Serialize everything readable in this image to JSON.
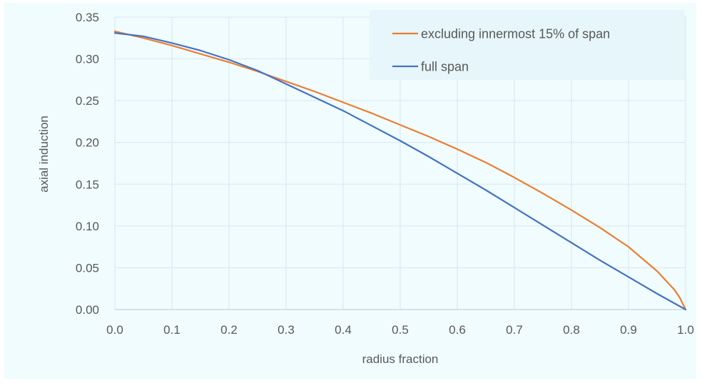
{
  "chart_data": {
    "type": "line",
    "title": "",
    "xlabel": "radius fraction",
    "ylabel": "axial induction",
    "xlim": [
      0,
      1
    ],
    "ylim": [
      0,
      0.35
    ],
    "x_ticks": [
      "0.0",
      "0.1",
      "0.2",
      "0.3",
      "0.4",
      "0.5",
      "0.6",
      "0.7",
      "0.8",
      "0.9",
      "1.0"
    ],
    "y_ticks": [
      "0.00",
      "0.05",
      "0.10",
      "0.15",
      "0.20",
      "0.25",
      "0.30",
      "0.35"
    ],
    "grid": true,
    "legend_position": "top-right",
    "series": [
      {
        "name": "excluding innermost 15% of span",
        "color": "#ed7d31",
        "x": [
          0.0,
          0.05,
          0.1,
          0.15,
          0.2,
          0.25,
          0.3,
          0.35,
          0.4,
          0.45,
          0.5,
          0.55,
          0.6,
          0.65,
          0.7,
          0.75,
          0.8,
          0.85,
          0.9,
          0.95,
          0.98,
          0.99,
          1.0
        ],
        "y": [
          0.333,
          0.325,
          0.316,
          0.306,
          0.296,
          0.285,
          0.273,
          0.261,
          0.248,
          0.235,
          0.221,
          0.207,
          0.192,
          0.176,
          0.158,
          0.139,
          0.119,
          0.098,
          0.075,
          0.046,
          0.024,
          0.014,
          0.0
        ]
      },
      {
        "name": "full span",
        "color": "#4472c4",
        "x": [
          0.0,
          0.05,
          0.1,
          0.15,
          0.2,
          0.25,
          0.3,
          0.35,
          0.4,
          0.45,
          0.5,
          0.55,
          0.6,
          0.65,
          0.7,
          0.75,
          0.8,
          0.85,
          0.9,
          0.95,
          1.0
        ],
        "y": [
          0.331,
          0.327,
          0.319,
          0.31,
          0.299,
          0.286,
          0.27,
          0.254,
          0.238,
          0.22,
          0.202,
          0.183,
          0.163,
          0.143,
          0.122,
          0.101,
          0.08,
          0.059,
          0.039,
          0.019,
          0.0
        ]
      }
    ]
  }
}
